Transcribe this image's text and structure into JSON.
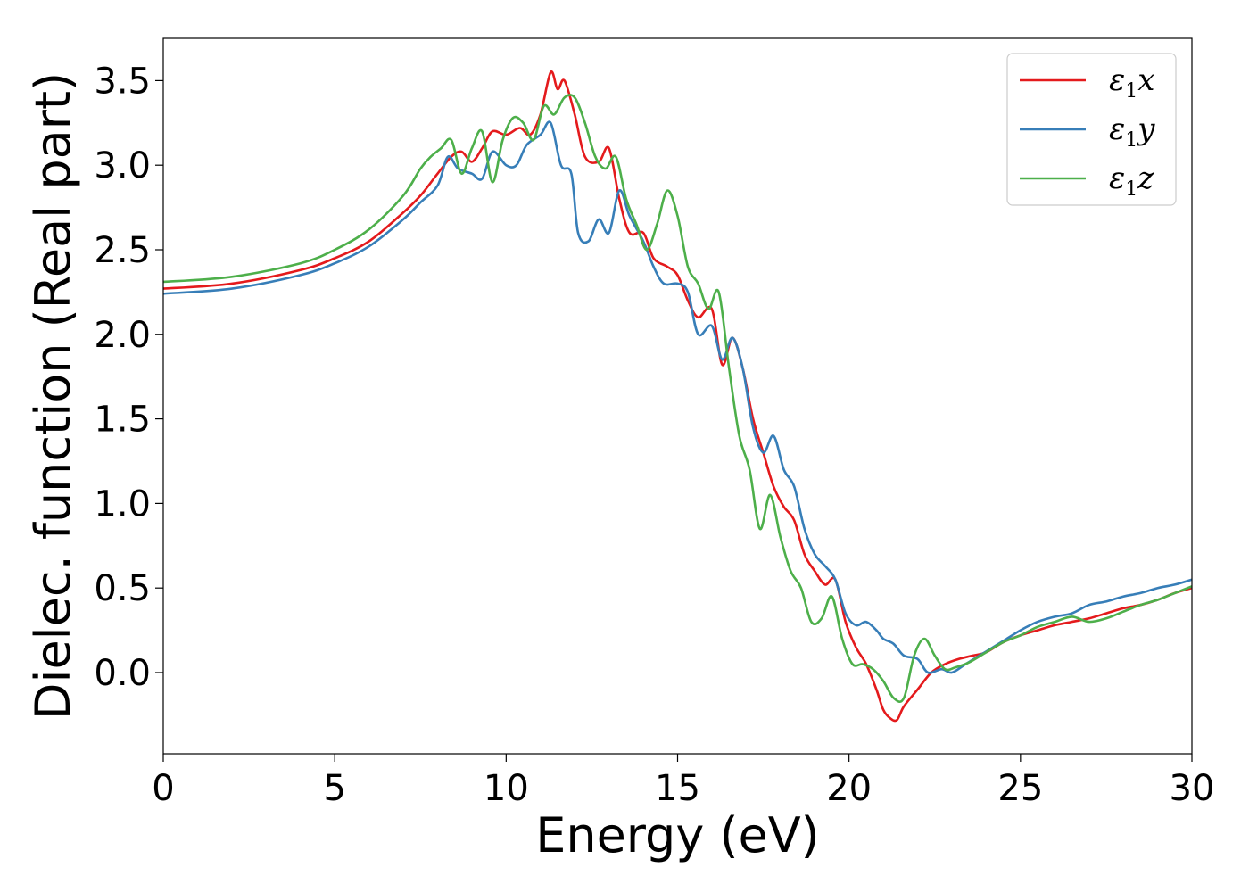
{
  "chart_data": {
    "type": "line",
    "title": "",
    "xlabel": "Energy (eV)",
    "ylabel": "Dielec. function (Real part)",
    "xlim": [
      0,
      30
    ],
    "ylim": [
      -0.48,
      3.75
    ],
    "xticks": [
      0,
      5,
      10,
      15,
      20,
      25,
      30
    ],
    "xtick_labels": [
      "0",
      "5",
      "10",
      "15",
      "20",
      "25",
      "30"
    ],
    "yticks": [
      0.0,
      0.5,
      1.0,
      1.5,
      2.0,
      2.5,
      3.0,
      3.5
    ],
    "ytick_labels": [
      "0.0",
      "0.5",
      "1.0",
      "1.5",
      "2.0",
      "2.5",
      "3.0",
      "3.5"
    ],
    "grid": false,
    "legend_position": "top-right",
    "series": [
      {
        "name": "ε1x",
        "symbol": "ε",
        "subscript": "1",
        "suffix": "x",
        "color": "#e41a1c",
        "x": [
          0,
          2,
          4,
          5,
          6,
          7,
          7.5,
          8,
          8.4,
          8.7,
          9,
          9.3,
          9.6,
          10,
          10.4,
          10.7,
          11,
          11.3,
          11.5,
          11.7,
          12,
          12.3,
          12.7,
          13,
          13.3,
          13.6,
          14,
          14.3,
          14.7,
          15,
          15.3,
          15.6,
          16,
          16.3,
          16.6,
          16.9,
          17.2,
          17.5,
          17.8,
          18.1,
          18.4,
          18.7,
          19,
          19.3,
          19.6,
          19.9,
          20.2,
          20.5,
          20.8,
          21,
          21.2,
          21.4,
          21.6,
          22,
          22.4,
          22.8,
          23.2,
          23.6,
          24,
          24.5,
          25,
          25.5,
          26,
          26.5,
          27,
          27.5,
          28,
          28.5,
          29,
          29.5,
          30
        ],
        "y": [
          2.27,
          2.3,
          2.38,
          2.45,
          2.55,
          2.72,
          2.82,
          2.95,
          3.05,
          3.08,
          3.02,
          3.1,
          3.2,
          3.18,
          3.22,
          3.18,
          3.3,
          3.55,
          3.45,
          3.5,
          3.3,
          3.05,
          3.02,
          3.1,
          2.8,
          2.6,
          2.6,
          2.45,
          2.4,
          2.35,
          2.2,
          2.1,
          2.15,
          1.82,
          1.98,
          1.8,
          1.5,
          1.3,
          1.1,
          0.98,
          0.9,
          0.7,
          0.6,
          0.52,
          0.55,
          0.3,
          0.15,
          0.05,
          -0.1,
          -0.22,
          -0.27,
          -0.28,
          -0.2,
          -0.1,
          0.0,
          0.05,
          0.08,
          0.1,
          0.12,
          0.18,
          0.22,
          0.25,
          0.28,
          0.3,
          0.32,
          0.35,
          0.38,
          0.4,
          0.43,
          0.47,
          0.5
        ]
      },
      {
        "name": "ε1y",
        "symbol": "ε",
        "subscript": "1",
        "suffix": "y",
        "color": "#377eb8",
        "x": [
          0,
          2,
          4,
          5,
          6,
          7,
          7.5,
          8,
          8.3,
          8.6,
          9,
          9.3,
          9.6,
          10,
          10.3,
          10.6,
          11,
          11.3,
          11.6,
          11.9,
          12.1,
          12.4,
          12.7,
          13,
          13.3,
          13.6,
          14,
          14.3,
          14.6,
          15,
          15.3,
          15.6,
          16,
          16.3,
          16.6,
          16.9,
          17.2,
          17.5,
          17.8,
          18.1,
          18.4,
          18.7,
          19,
          19.3,
          19.6,
          19.9,
          20.2,
          20.5,
          20.8,
          21,
          21.3,
          21.6,
          22,
          22.3,
          22.7,
          23,
          23.4,
          23.8,
          24.2,
          24.6,
          25,
          25.5,
          26,
          26.5,
          27,
          27.5,
          28,
          28.5,
          29,
          29.5,
          30
        ],
        "y": [
          2.24,
          2.27,
          2.35,
          2.42,
          2.52,
          2.68,
          2.78,
          2.88,
          3.05,
          2.98,
          2.95,
          2.92,
          3.08,
          3.0,
          3.0,
          3.12,
          3.18,
          3.25,
          3.0,
          2.95,
          2.6,
          2.55,
          2.68,
          2.6,
          2.85,
          2.7,
          2.55,
          2.4,
          2.3,
          2.3,
          2.25,
          2.0,
          2.05,
          1.85,
          1.98,
          1.8,
          1.45,
          1.3,
          1.4,
          1.2,
          1.1,
          0.85,
          0.7,
          0.63,
          0.55,
          0.35,
          0.28,
          0.3,
          0.25,
          0.2,
          0.17,
          0.1,
          0.08,
          0.0,
          0.02,
          0.0,
          0.05,
          0.1,
          0.15,
          0.2,
          0.25,
          0.3,
          0.33,
          0.35,
          0.4,
          0.42,
          0.45,
          0.47,
          0.5,
          0.52,
          0.55
        ]
      },
      {
        "name": "ε1z",
        "symbol": "ε",
        "subscript": "1",
        "suffix": "z",
        "color": "#4daf4a",
        "x": [
          0,
          2,
          4,
          5,
          6,
          7,
          7.5,
          7.8,
          8.1,
          8.4,
          8.7,
          9,
          9.3,
          9.6,
          9.9,
          10.2,
          10.5,
          10.8,
          11.1,
          11.4,
          11.7,
          12,
          12.3,
          12.6,
          12.9,
          13.2,
          13.5,
          13.8,
          14.1,
          14.4,
          14.7,
          15,
          15.3,
          15.6,
          15.9,
          16.2,
          16.5,
          16.8,
          17.1,
          17.4,
          17.7,
          18,
          18.3,
          18.6,
          18.9,
          19.2,
          19.5,
          19.8,
          20.1,
          20.4,
          20.7,
          21,
          21.3,
          21.6,
          21.9,
          22.2,
          22.5,
          22.8,
          23.1,
          23.5,
          24,
          24.5,
          25,
          25.5,
          26,
          26.5,
          27,
          27.5,
          28,
          28.5,
          29,
          29.5,
          30
        ],
        "y": [
          2.31,
          2.34,
          2.42,
          2.5,
          2.62,
          2.82,
          2.98,
          3.05,
          3.1,
          3.15,
          2.95,
          3.1,
          3.2,
          2.9,
          3.15,
          3.28,
          3.25,
          3.15,
          3.35,
          3.3,
          3.4,
          3.4,
          3.25,
          3.05,
          2.98,
          3.05,
          2.8,
          2.65,
          2.5,
          2.65,
          2.85,
          2.7,
          2.4,
          2.3,
          2.15,
          2.25,
          1.8,
          1.4,
          1.2,
          0.85,
          1.05,
          0.8,
          0.6,
          0.5,
          0.3,
          0.32,
          0.45,
          0.2,
          0.05,
          0.05,
          0.02,
          -0.05,
          -0.15,
          -0.15,
          0.1,
          0.2,
          0.1,
          0.02,
          0.03,
          0.06,
          0.12,
          0.18,
          0.22,
          0.27,
          0.3,
          0.33,
          0.3,
          0.32,
          0.36,
          0.4,
          0.43,
          0.47,
          0.51
        ]
      }
    ]
  }
}
